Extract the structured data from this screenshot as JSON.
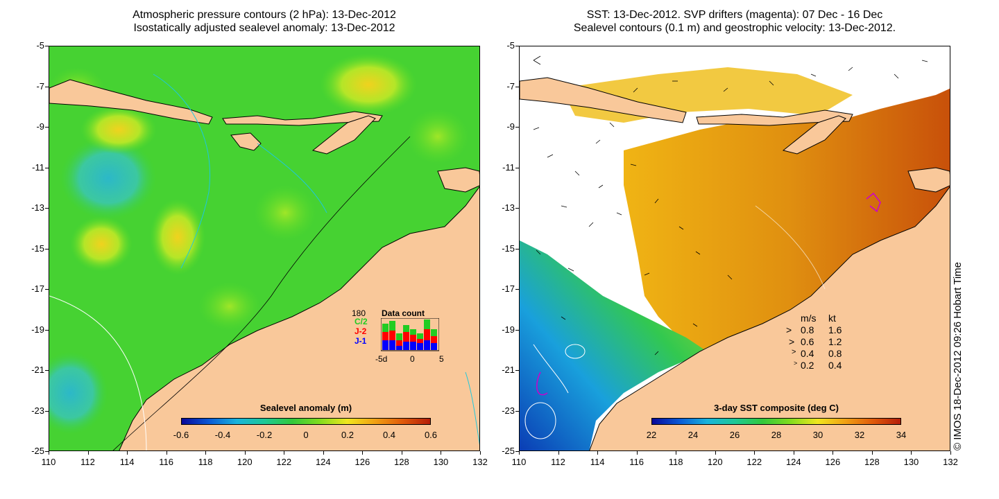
{
  "left_panel": {
    "title_line1": "Atmospheric pressure contours (2 hPa): 13-Dec-2012",
    "title_line2": "Isostatically adjusted sealevel anomaly: 13-Dec-2012",
    "colorbar": {
      "title": "Sealevel anomaly (m)",
      "ticks": [
        "-0.6",
        "-0.4",
        "-0.2",
        "0",
        "0.2",
        "0.4",
        "0.6"
      ],
      "colors": [
        "#08089a",
        "#0a5ad6",
        "#19b4dc",
        "#1ec896",
        "#32c83c",
        "#82dc1e",
        "#f0e61e",
        "#f0a014",
        "#e05a0a",
        "#b41e0a"
      ]
    },
    "data_count": {
      "title": "Data count",
      "max_label": "180",
      "legend": [
        "C/2",
        "J-2",
        "J-1"
      ],
      "legend_colors": [
        "#22cc22",
        "#ff0000",
        "#0000ff"
      ],
      "x_ticks": [
        "-5d",
        "0",
        "5"
      ]
    }
  },
  "right_panel": {
    "title_line1": "SST: 13-Dec-2012. SVP drifters (magenta): 07 Dec - 16 Dec",
    "title_line2": "Sealevel contours (0.1 m) and geostrophic velocity: 13-Dec-2012.",
    "colorbar": {
      "title": "3-day SST composite (deg C)",
      "ticks": [
        "22",
        "24",
        "26",
        "28",
        "30",
        "32",
        "34"
      ],
      "colors": [
        "#08089a",
        "#0a5ad6",
        "#19b4dc",
        "#1ec896",
        "#32c83c",
        "#82dc1e",
        "#f0e61e",
        "#f0a014",
        "#e05a0a",
        "#b41e0a"
      ]
    },
    "velocity_legend": {
      "header_ms": "m/s",
      "header_kt": "kt",
      "rows": [
        {
          "ms": "0.8",
          "kt": "1.6"
        },
        {
          "ms": "0.6",
          "kt": "1.2"
        },
        {
          "ms": "0.4",
          "kt": "0.8"
        },
        {
          "ms": "0.2",
          "kt": "0.4"
        }
      ]
    }
  },
  "axes": {
    "x_ticks": [
      "110",
      "112",
      "114",
      "116",
      "118",
      "120",
      "122",
      "124",
      "126",
      "128",
      "130",
      "132"
    ],
    "y_ticks": [
      "-5",
      "-7",
      "-9",
      "-11",
      "-13",
      "-15",
      "-17",
      "-19",
      "-21",
      "-23",
      "-25"
    ]
  },
  "watermark": "© IMOS 18-Dec-2012 09:26 Hobart Time",
  "colors": {
    "land": "#f9c89a",
    "sea_green": "#3cd23c",
    "sst_orange": "#e09010",
    "sst_blue": "#1a50c8"
  }
}
